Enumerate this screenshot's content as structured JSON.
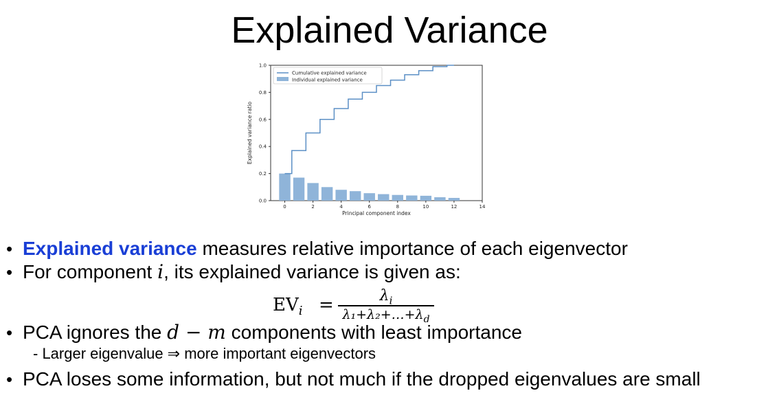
{
  "title": "Explained Variance",
  "chart_data": {
    "type": "bar",
    "xlabel": "Principal component index",
    "ylabel": "Explained variance ratio",
    "xlim": [
      -1,
      14
    ],
    "ylim": [
      0,
      1.0
    ],
    "x_ticks": [
      0,
      2,
      4,
      6,
      8,
      10,
      12,
      14
    ],
    "y_ticks": [
      0.0,
      0.2,
      0.4,
      0.6,
      0.8,
      1.0
    ],
    "grid": false,
    "legend_placement": "top-left",
    "categories": [
      0,
      1,
      2,
      3,
      4,
      5,
      6,
      7,
      8,
      9,
      10,
      11,
      12
    ],
    "series": [
      {
        "name": "Individual explained variance",
        "kind": "bar",
        "color": "#8fb4d9",
        "values": [
          0.2,
          0.17,
          0.13,
          0.1,
          0.08,
          0.07,
          0.055,
          0.048,
          0.042,
          0.038,
          0.036,
          0.025,
          0.02
        ]
      },
      {
        "name": "Cumulative explained variance",
        "kind": "step",
        "color": "#5b8fc5",
        "values": [
          0.2,
          0.37,
          0.5,
          0.6,
          0.68,
          0.75,
          0.8,
          0.85,
          0.89,
          0.93,
          0.96,
          0.99,
          1.0
        ]
      }
    ]
  },
  "bullets": {
    "b1_highlight": "Explained variance",
    "b1_rest": " measures relative importance of each eigenvector",
    "b2_pre": "For component ",
    "b2_var": "i",
    "b2_post": ", its explained variance is given as:",
    "formula_lhs_main": "EV",
    "formula_lhs_sub": "i",
    "formula_eq": "=",
    "formula_num_main": "λ",
    "formula_num_sub": "i",
    "formula_den": "λ₁+λ₂+…+λ",
    "formula_den_sub": "d",
    "b3_pre": "PCA ignores the ",
    "b3_math": "d − m",
    "b3_post": " components with least importance",
    "b3_sub": "- Larger eigenvalue ⇒ more important eigenvectors",
    "b4": "PCA loses some information, but not much if the dropped eigenvalues are small",
    "bullet_char": "•"
  }
}
